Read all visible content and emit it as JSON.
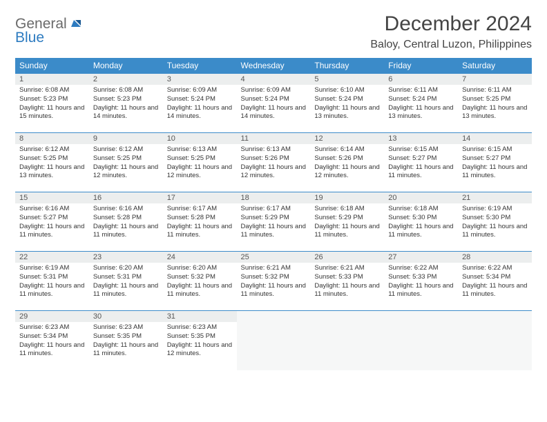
{
  "brand": {
    "part1": "General",
    "part2": "Blue"
  },
  "title": "December 2024",
  "location": "Baloy, Central Luzon, Philippines",
  "colors": {
    "header_bg": "#3b8bc9",
    "header_text": "#ffffff",
    "daynum_bg": "#eceeee",
    "border": "#3b8bc9",
    "empty_bg": "#f6f7f7",
    "logo_gray": "#6a6a6a",
    "logo_blue": "#2d7bc0"
  },
  "weekdays": [
    "Sunday",
    "Monday",
    "Tuesday",
    "Wednesday",
    "Thursday",
    "Friday",
    "Saturday"
  ],
  "days": [
    {
      "n": "1",
      "sr": "6:08 AM",
      "ss": "5:23 PM",
      "dl": "11 hours and 15 minutes."
    },
    {
      "n": "2",
      "sr": "6:08 AM",
      "ss": "5:23 PM",
      "dl": "11 hours and 14 minutes."
    },
    {
      "n": "3",
      "sr": "6:09 AM",
      "ss": "5:24 PM",
      "dl": "11 hours and 14 minutes."
    },
    {
      "n": "4",
      "sr": "6:09 AM",
      "ss": "5:24 PM",
      "dl": "11 hours and 14 minutes."
    },
    {
      "n": "5",
      "sr": "6:10 AM",
      "ss": "5:24 PM",
      "dl": "11 hours and 13 minutes."
    },
    {
      "n": "6",
      "sr": "6:11 AM",
      "ss": "5:24 PM",
      "dl": "11 hours and 13 minutes."
    },
    {
      "n": "7",
      "sr": "6:11 AM",
      "ss": "5:25 PM",
      "dl": "11 hours and 13 minutes."
    },
    {
      "n": "8",
      "sr": "6:12 AM",
      "ss": "5:25 PM",
      "dl": "11 hours and 13 minutes."
    },
    {
      "n": "9",
      "sr": "6:12 AM",
      "ss": "5:25 PM",
      "dl": "11 hours and 12 minutes."
    },
    {
      "n": "10",
      "sr": "6:13 AM",
      "ss": "5:25 PM",
      "dl": "11 hours and 12 minutes."
    },
    {
      "n": "11",
      "sr": "6:13 AM",
      "ss": "5:26 PM",
      "dl": "11 hours and 12 minutes."
    },
    {
      "n": "12",
      "sr": "6:14 AM",
      "ss": "5:26 PM",
      "dl": "11 hours and 12 minutes."
    },
    {
      "n": "13",
      "sr": "6:15 AM",
      "ss": "5:27 PM",
      "dl": "11 hours and 11 minutes."
    },
    {
      "n": "14",
      "sr": "6:15 AM",
      "ss": "5:27 PM",
      "dl": "11 hours and 11 minutes."
    },
    {
      "n": "15",
      "sr": "6:16 AM",
      "ss": "5:27 PM",
      "dl": "11 hours and 11 minutes."
    },
    {
      "n": "16",
      "sr": "6:16 AM",
      "ss": "5:28 PM",
      "dl": "11 hours and 11 minutes."
    },
    {
      "n": "17",
      "sr": "6:17 AM",
      "ss": "5:28 PM",
      "dl": "11 hours and 11 minutes."
    },
    {
      "n": "18",
      "sr": "6:17 AM",
      "ss": "5:29 PM",
      "dl": "11 hours and 11 minutes."
    },
    {
      "n": "19",
      "sr": "6:18 AM",
      "ss": "5:29 PM",
      "dl": "11 hours and 11 minutes."
    },
    {
      "n": "20",
      "sr": "6:18 AM",
      "ss": "5:30 PM",
      "dl": "11 hours and 11 minutes."
    },
    {
      "n": "21",
      "sr": "6:19 AM",
      "ss": "5:30 PM",
      "dl": "11 hours and 11 minutes."
    },
    {
      "n": "22",
      "sr": "6:19 AM",
      "ss": "5:31 PM",
      "dl": "11 hours and 11 minutes."
    },
    {
      "n": "23",
      "sr": "6:20 AM",
      "ss": "5:31 PM",
      "dl": "11 hours and 11 minutes."
    },
    {
      "n": "24",
      "sr": "6:20 AM",
      "ss": "5:32 PM",
      "dl": "11 hours and 11 minutes."
    },
    {
      "n": "25",
      "sr": "6:21 AM",
      "ss": "5:32 PM",
      "dl": "11 hours and 11 minutes."
    },
    {
      "n": "26",
      "sr": "6:21 AM",
      "ss": "5:33 PM",
      "dl": "11 hours and 11 minutes."
    },
    {
      "n": "27",
      "sr": "6:22 AM",
      "ss": "5:33 PM",
      "dl": "11 hours and 11 minutes."
    },
    {
      "n": "28",
      "sr": "6:22 AM",
      "ss": "5:34 PM",
      "dl": "11 hours and 11 minutes."
    },
    {
      "n": "29",
      "sr": "6:23 AM",
      "ss": "5:34 PM",
      "dl": "11 hours and 11 minutes."
    },
    {
      "n": "30",
      "sr": "6:23 AM",
      "ss": "5:35 PM",
      "dl": "11 hours and 11 minutes."
    },
    {
      "n": "31",
      "sr": "6:23 AM",
      "ss": "5:35 PM",
      "dl": "11 hours and 12 minutes."
    }
  ],
  "labels": {
    "sunrise": "Sunrise:",
    "sunset": "Sunset:",
    "daylight": "Daylight:"
  },
  "layout": {
    "start_weekday": 0,
    "rows": 5,
    "cols": 7
  }
}
